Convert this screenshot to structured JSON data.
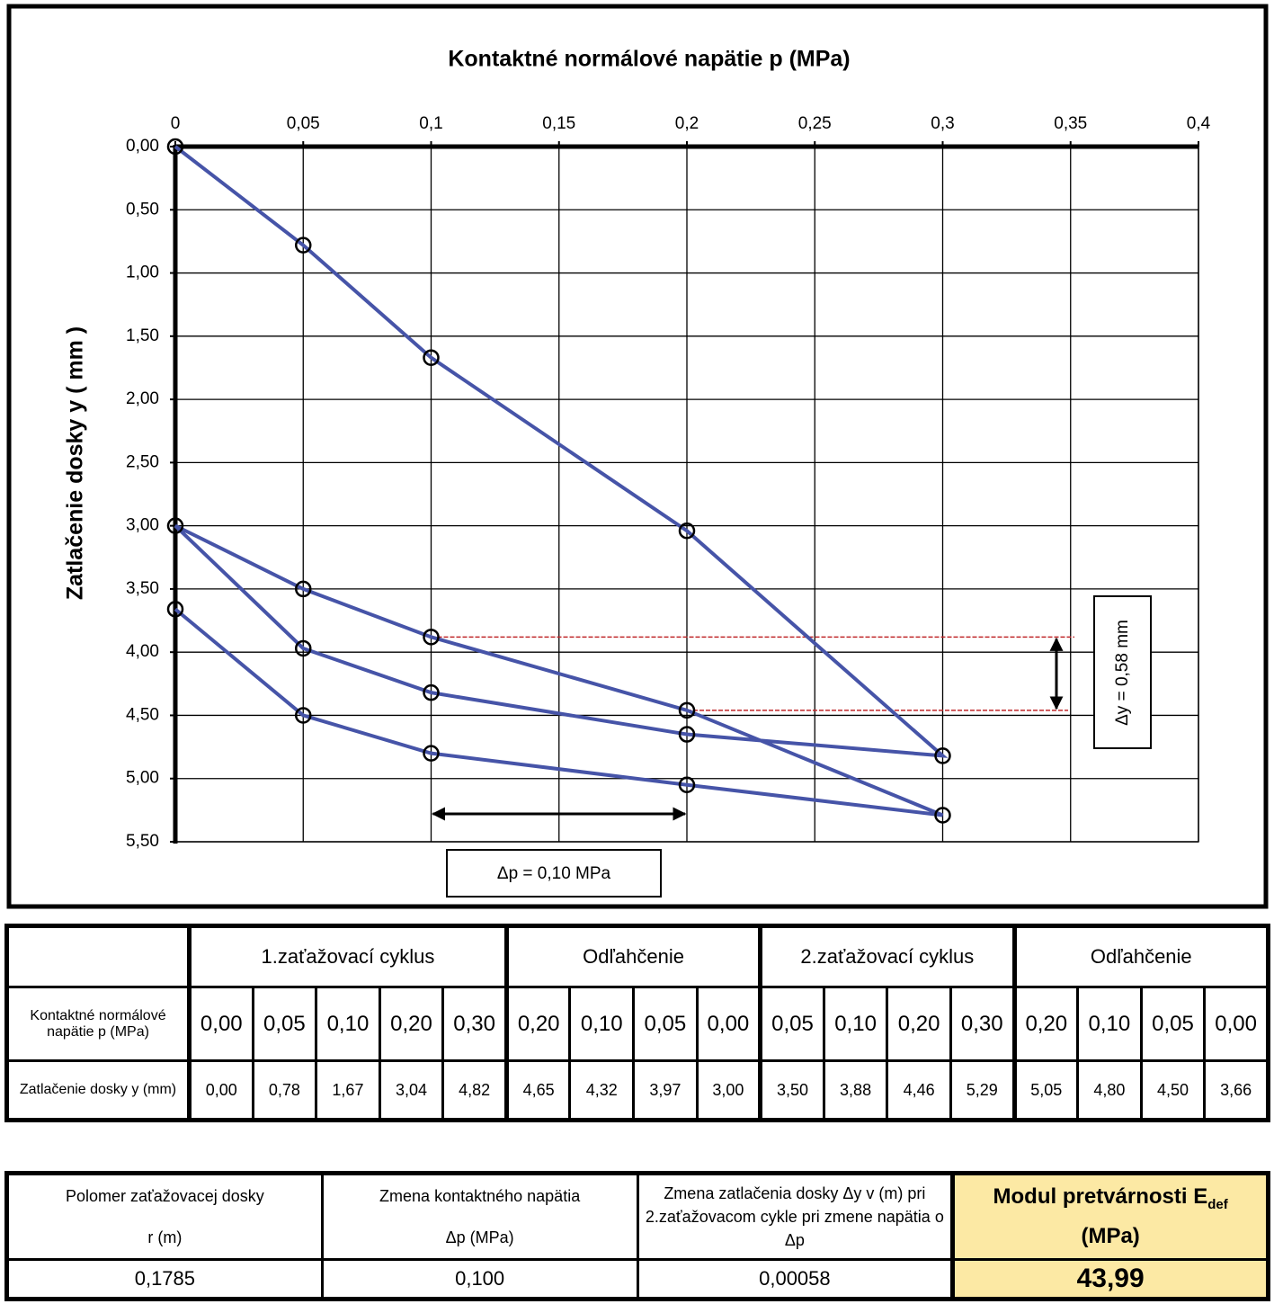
{
  "chart_data": {
    "type": "line",
    "title": "Kontaktné normálové napätie p (MPa)",
    "y_label": "Zatlačenie dosky y  ( mm )",
    "x_axis_position": "top",
    "y_inverted": true,
    "grid": true,
    "xlim": [
      0,
      0.4
    ],
    "xticks": [
      0,
      {
        "value": 0.05,
        "label": "0,05"
      },
      {
        "value": 0.1,
        "label": "0,1"
      },
      {
        "value": 0.15,
        "label": "0,15"
      },
      {
        "value": 0.2,
        "label": "0,2"
      },
      {
        "value": 0.25,
        "label": "0,25"
      },
      {
        "value": 0.3,
        "label": "0,3"
      },
      {
        "value": 0.35,
        "label": "0,35"
      },
      {
        "value": 0.4,
        "label": "0,4"
      }
    ],
    "ylim": [
      0,
      5.5
    ],
    "yticks": [
      {
        "value": 0,
        "label": "0,00"
      },
      {
        "value": 0.5,
        "label": "0,50"
      },
      {
        "value": 1,
        "label": "1,00"
      },
      {
        "value": 1.5,
        "label": "1,50"
      },
      {
        "value": 2,
        "label": "2,00"
      },
      {
        "value": 2.5,
        "label": "2,50"
      },
      {
        "value": 3,
        "label": "3,00"
      },
      {
        "value": 3.5,
        "label": "3,50"
      },
      {
        "value": 4,
        "label": "4,00"
      },
      {
        "value": 4.5,
        "label": "4,50"
      },
      {
        "value": 5,
        "label": "5,00"
      },
      {
        "value": 5.5,
        "label": "5,50"
      }
    ],
    "x": [
      0,
      0.05,
      0.1,
      0.2,
      0.3,
      0.2,
      0.1,
      0.05,
      0,
      0.05,
      0.1,
      0.2,
      0.3,
      0.2,
      0.1,
      0.05,
      0
    ],
    "series": [
      {
        "color": "#4654a8",
        "marker_color": "#000000",
        "values": [
          0,
          0.78,
          1.67,
          3.04,
          4.82,
          4.65,
          4.32,
          3.97,
          3.0,
          3.5,
          3.88,
          4.46,
          5.29,
          5.05,
          4.8,
          4.5,
          3.66
        ]
      }
    ],
    "annotations": [
      {
        "text": "Δp = 0,10 MPa"
      },
      {
        "text": "Δy = 0,58 mm"
      }
    ]
  },
  "loading_table": {
    "header": [
      "1.zaťažovací cyklus",
      "Odľahčenie",
      "2.zaťažovací cyklus",
      "Odľahčenie"
    ],
    "rows": [
      [
        "Kontaktné normálové napätie p (MPa)",
        "0,00",
        "0,05",
        "0,10",
        "0,20",
        "0,30",
        "0,20",
        "0,10",
        "0,05",
        "0,00",
        "0,05",
        "0,10",
        "0,20",
        "0,30",
        "0,20",
        "0,10",
        "0,05",
        "0,00"
      ],
      [
        "Zatlačenie dosky y (mm)",
        "0,00",
        "0,78",
        "1,67",
        "3,04",
        "4,82",
        "4,65",
        "4,32",
        "3,97",
        "3,00",
        "3,50",
        "3,88",
        "4,46",
        "5,29",
        "5,05",
        "4,80",
        "4,50",
        "3,66"
      ]
    ]
  },
  "result_table": {
    "header": [
      [
        "Polomer zaťažovacej dosky",
        "r (m)"
      ],
      [
        "Zmena kontaktného napätia",
        "Δp  (MPa)"
      ],
      [
        "Zmena zatlačenia dosky Δy v (m) pri 2.zaťažovacom cykle pri zmene napätia o Δp"
      ]
    ],
    "modulus_header": {
      "text": "Modul pretvárnosti  E",
      "subscript": "def",
      "unit": "(MPa)"
    },
    "values": [
      "0,1785",
      "0,100",
      "0,00058",
      "43,99"
    ]
  }
}
